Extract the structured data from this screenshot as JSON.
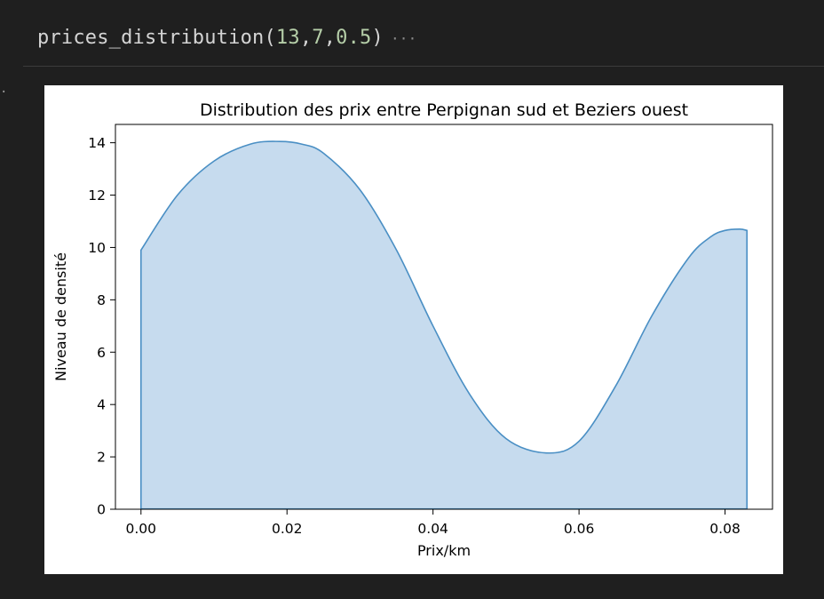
{
  "code": {
    "fn_name": "prices_distribution",
    "open_paren": "(",
    "arg1": "13",
    "comma1": ",",
    "arg2": "7",
    "comma2": ",",
    "arg3": "0.5",
    "close_paren": ")",
    "ellipsis": "···"
  },
  "gutter": {
    "marker": "·"
  },
  "chart_data": {
    "type": "area",
    "title": "Distribution des prix entre Perpignan sud et Beziers ouest",
    "xlabel": "Prix/km",
    "ylabel": "Niveau de densité",
    "xlim": [
      -0.0035,
      0.0865
    ],
    "ylim": [
      0,
      14.7
    ],
    "xticks": [
      0.0,
      0.02,
      0.04,
      0.06,
      0.08
    ],
    "xtick_labels": [
      "0.00",
      "0.02",
      "0.04",
      "0.06",
      "0.08"
    ],
    "yticks": [
      0,
      2,
      4,
      6,
      8,
      10,
      12,
      14
    ],
    "ytick_labels": [
      "0",
      "2",
      "4",
      "6",
      "8",
      "10",
      "12",
      "14"
    ],
    "grid": false,
    "series": [
      {
        "line_color": "#4a8fc4",
        "fill_color": "#c6dbee",
        "x": [
          0.0,
          0.005,
          0.01,
          0.015,
          0.019,
          0.022,
          0.025,
          0.03,
          0.035,
          0.04,
          0.045,
          0.05,
          0.0555,
          0.06,
          0.065,
          0.07,
          0.075,
          0.078,
          0.08,
          0.082,
          0.083
        ],
        "y": [
          9.9,
          12.0,
          13.3,
          13.95,
          14.05,
          13.95,
          13.6,
          12.2,
          9.9,
          7.0,
          4.4,
          2.7,
          2.15,
          2.6,
          4.7,
          7.4,
          9.6,
          10.4,
          10.65,
          10.7,
          10.65
        ]
      }
    ]
  }
}
